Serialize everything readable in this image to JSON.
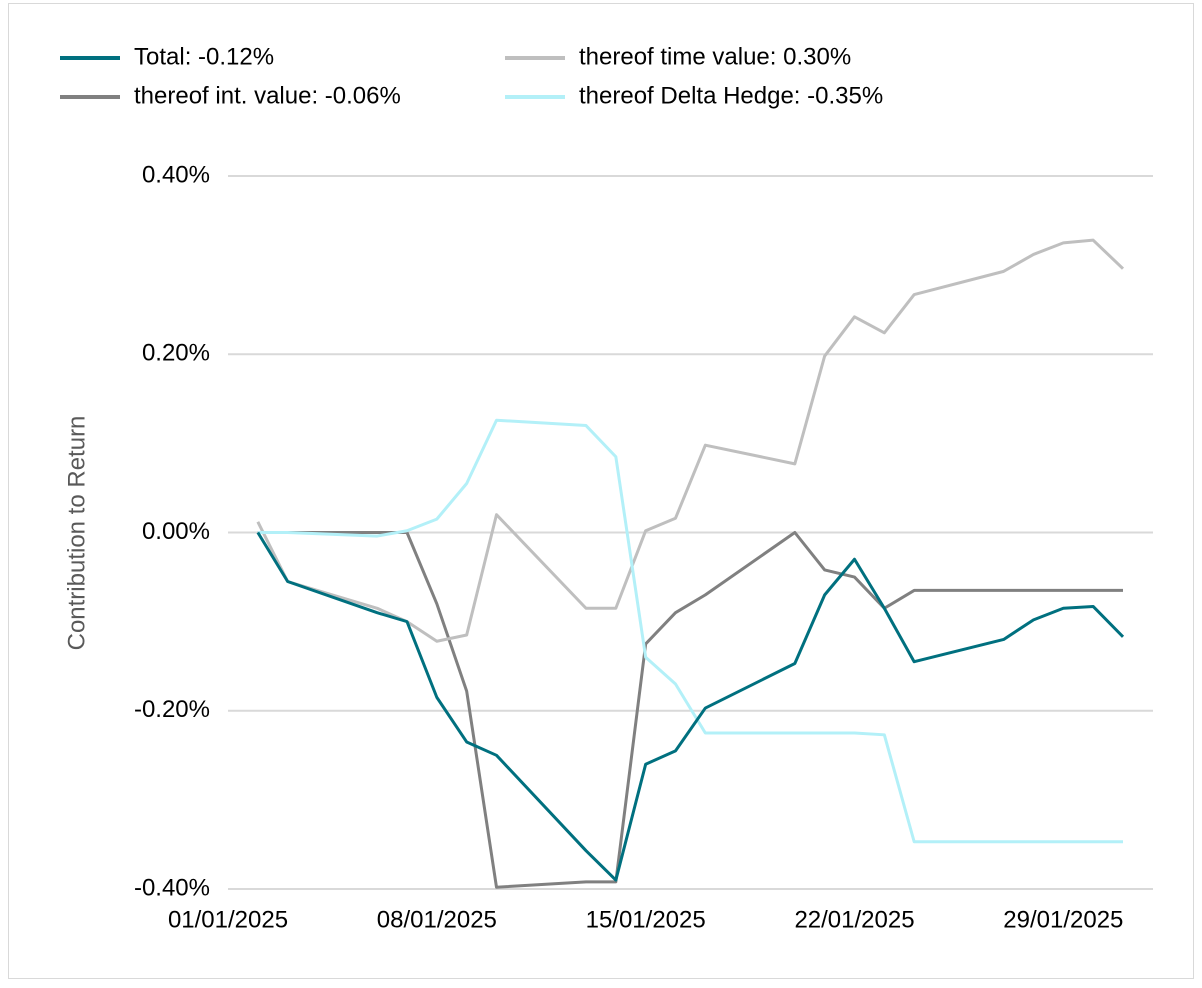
{
  "chart_data": {
    "type": "line",
    "y_label": "Contribution to Return",
    "x": [
      "02/01/2025",
      "03/01/2025",
      "06/01/2025",
      "07/01/2025",
      "08/01/2025",
      "09/01/2025",
      "10/01/2025",
      "13/01/2025",
      "14/01/2025",
      "15/01/2025",
      "16/01/2025",
      "17/01/2025",
      "20/01/2025",
      "21/01/2025",
      "22/01/2025",
      "23/01/2025",
      "24/01/2025",
      "27/01/2025",
      "28/01/2025",
      "29/01/2025",
      "30/01/2025",
      "31/01/2025"
    ],
    "xlim": [
      "01/01/2025",
      "31/01/2025"
    ],
    "xticks": [
      "01/01/2025",
      "08/01/2025",
      "15/01/2025",
      "22/01/2025",
      "29/01/2025"
    ],
    "ylim": [
      -0.4,
      0.4
    ],
    "yticks": [
      {
        "value": -0.4,
        "label": "-0.40%"
      },
      {
        "value": -0.2,
        "label": "-0.20%"
      },
      {
        "value": 0,
        "label": "0.00%"
      },
      {
        "value": 0.2,
        "label": "0.20%"
      },
      {
        "value": 0.4,
        "label": "0.40%"
      }
    ],
    "grid": true,
    "legend": "top",
    "series": [
      {
        "name": "Total: -0.12%",
        "color": "#00707f",
        "values": [
          0,
          -0.055,
          -0.09,
          -0.1,
          -0.185,
          -0.235,
          -0.25,
          -0.357,
          -0.39,
          -0.26,
          -0.245,
          -0.197,
          -0.147,
          -0.07,
          -0.03,
          -0.085,
          -0.145,
          -0.12,
          -0.098,
          -0.085,
          -0.083,
          -0.117
        ]
      },
      {
        "name": "thereof time value: 0.30%",
        "color": "#bfbfbf",
        "values": [
          0.012,
          -0.055,
          -0.085,
          -0.1,
          -0.122,
          -0.115,
          0.02,
          -0.085,
          -0.085,
          0.002,
          0.016,
          0.098,
          0.077,
          0.198,
          0.242,
          0.224,
          0.267,
          0.293,
          0.312,
          0.325,
          0.328,
          0.296
        ]
      },
      {
        "name": "thereof int. value: -0.06%",
        "color": "#808080",
        "values": [
          0,
          0,
          0,
          0,
          -0.08,
          -0.178,
          -0.398,
          -0.392,
          -0.392,
          -0.125,
          -0.09,
          -0.07,
          0,
          -0.042,
          -0.05,
          -0.085,
          -0.065,
          -0.065,
          -0.065,
          -0.065,
          -0.065,
          -0.065
        ]
      },
      {
        "name": "thereof Delta Hedge: -0.35%",
        "color": "#b3f0f8",
        "values": [
          0,
          0,
          -0.004,
          0.002,
          0.015,
          0.055,
          0.126,
          0.12,
          0.085,
          -0.14,
          -0.17,
          -0.225,
          -0.225,
          -0.225,
          -0.225,
          -0.227,
          -0.347,
          -0.347,
          -0.347,
          -0.347,
          -0.347,
          -0.347
        ]
      }
    ]
  }
}
